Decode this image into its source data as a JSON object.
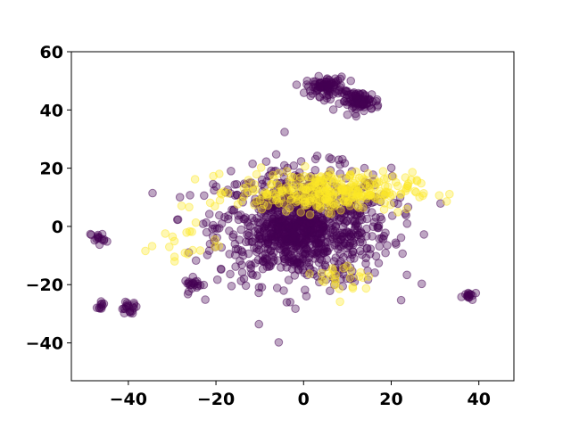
{
  "chart_data": {
    "type": "scatter",
    "title": "",
    "xlabel": "",
    "ylabel": "",
    "xlim": [
      -53,
      48
    ],
    "ylim": [
      -53,
      60
    ],
    "x_ticks": [
      -40,
      -20,
      0,
      20,
      40
    ],
    "y_ticks": [
      -40,
      -20,
      0,
      20,
      40,
      60
    ],
    "x_tick_labels": [
      "−40",
      "−20",
      "0",
      "20",
      "40"
    ],
    "y_tick_labels": [
      "−40",
      "−20",
      "0",
      "20",
      "40",
      "60"
    ],
    "grid": false,
    "legend": null,
    "point_alpha": 0.35,
    "series": [
      {
        "color": "#440154",
        "clusters": [
          {
            "center": [
              0,
              0
            ],
            "spread": [
              18,
              18
            ],
            "count": 900
          },
          {
            "center": [
              5,
              48
            ],
            "spread": [
              4,
              3
            ],
            "count": 90
          },
          {
            "center": [
              13,
              43
            ],
            "spread": [
              4,
              3
            ],
            "count": 90
          },
          {
            "center": [
              -47,
              -4
            ],
            "spread": [
              1.5,
              2
            ],
            "count": 15
          },
          {
            "center": [
              -46,
              -27
            ],
            "spread": [
              1,
              1
            ],
            "count": 10
          },
          {
            "center": [
              -40,
              -28
            ],
            "spread": [
              2,
              2
            ],
            "count": 20
          },
          {
            "center": [
              -25,
              -20
            ],
            "spread": [
              2,
              2
            ],
            "count": 20
          },
          {
            "center": [
              38,
              -24
            ],
            "spread": [
              1.5,
              1.5
            ],
            "count": 15
          },
          {
            "center": [
              -3,
              -3
            ],
            "spread": [
              7,
              7
            ],
            "count": 180
          }
        ]
      },
      {
        "color": "#fde725",
        "clusters": [
          {
            "center": [
              5,
              12
            ],
            "spread": [
              18,
              6
            ],
            "count": 320
          },
          {
            "center": [
              -28,
              -5
            ],
            "spread": [
              8,
              10
            ],
            "count": 20
          },
          {
            "center": [
              10,
              -18
            ],
            "spread": [
              6,
              6
            ],
            "count": 25
          }
        ]
      }
    ]
  }
}
